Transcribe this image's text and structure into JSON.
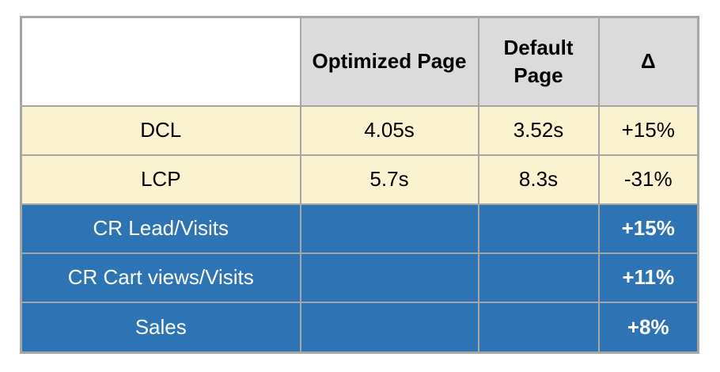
{
  "table": {
    "header": {
      "metric": "",
      "optimized": "Optimized Page",
      "default": "Default Page",
      "delta": "Δ"
    },
    "rows": [
      {
        "metric": "DCL",
        "optimized": "4.05s",
        "default": "3.52s",
        "delta": "+15%"
      },
      {
        "metric": "LCP",
        "optimized": "5.7s",
        "default": "8.3s",
        "delta": "-31%"
      },
      {
        "metric": "CR Lead/Visits",
        "optimized": "",
        "default": "",
        "delta": "+15%"
      },
      {
        "metric": "CR Cart views/Visits",
        "optimized": "",
        "default": "",
        "delta": "+11%"
      },
      {
        "metric": "Sales",
        "optimized": "",
        "default": "",
        "delta": "+8%"
      }
    ],
    "colors": {
      "header_bg": "#dbdbdb",
      "metric_rows_bg": "#fbf2d0",
      "conversion_rows_bg": "#2e74b5",
      "border": "#a6a6a6",
      "text_dark": "#000000",
      "text_light": "#ffffff"
    }
  }
}
